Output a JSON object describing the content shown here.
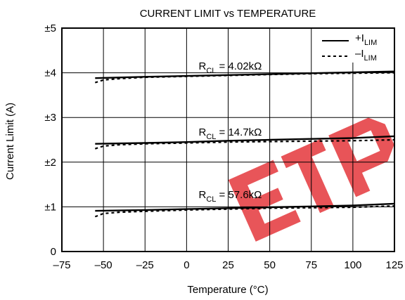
{
  "chart_data": {
    "type": "line",
    "title": "CURRENT LIMIT vs TEMPERATURE",
    "xlabel": "Temperature (°C)",
    "ylabel": "Current Limit (A)",
    "xlim": [
      -75,
      125
    ],
    "ylim": [
      0,
      5
    ],
    "x_ticks": [
      -75,
      -50,
      -25,
      0,
      25,
      50,
      75,
      100,
      125
    ],
    "x_tick_labels": [
      "–75",
      "–50",
      "–25",
      "0",
      "25",
      "50",
      "75",
      "100",
      "125"
    ],
    "y_ticks": [
      0,
      1,
      2,
      3,
      4,
      5
    ],
    "y_tick_labels": [
      "0",
      "±1",
      "±2",
      "±3",
      "±4",
      "±5"
    ],
    "grid": true,
    "legend_position": "top-right",
    "legend": [
      {
        "main": "+I",
        "sub": "LIM",
        "style": "solid"
      },
      {
        "main": "–I",
        "sub": "LIM",
        "style": "dashed"
      }
    ],
    "series": [
      {
        "name": "+I",
        "group": "4.02kΩ",
        "style": "solid",
        "x": [
          -55,
          -25,
          0,
          25,
          50,
          75,
          100,
          125
        ],
        "y": [
          3.88,
          3.91,
          3.93,
          3.95,
          3.97,
          3.99,
          4.01,
          4.03
        ]
      },
      {
        "name": "–I",
        "group": "4.02kΩ",
        "style": "dashed",
        "x": [
          -55,
          -50,
          -40,
          -25,
          0,
          25,
          50,
          75,
          100,
          125
        ],
        "y": [
          3.78,
          3.84,
          3.87,
          3.9,
          3.92,
          3.94,
          3.96,
          3.98,
          3.99,
          4.0
        ]
      },
      {
        "name": "+I",
        "group": "14.7kΩ",
        "style": "solid",
        "x": [
          -55,
          -25,
          0,
          25,
          50,
          75,
          100,
          125
        ],
        "y": [
          2.41,
          2.43,
          2.45,
          2.48,
          2.5,
          2.52,
          2.54,
          2.58
        ]
      },
      {
        "name": "–I",
        "group": "14.7kΩ",
        "style": "dashed",
        "x": [
          -55,
          -50,
          -40,
          -25,
          0,
          25,
          50,
          75,
          100,
          125
        ],
        "y": [
          2.3,
          2.36,
          2.39,
          2.41,
          2.43,
          2.45,
          2.46,
          2.47,
          2.48,
          2.5
        ]
      },
      {
        "name": "+I",
        "group": "57.6kΩ",
        "style": "solid",
        "x": [
          -55,
          -25,
          0,
          25,
          50,
          75,
          100,
          125
        ],
        "y": [
          0.91,
          0.93,
          0.95,
          0.97,
          0.99,
          1.01,
          1.03,
          1.07
        ]
      },
      {
        "name": "–I",
        "group": "57.6kΩ",
        "style": "dashed",
        "x": [
          -55,
          -50,
          -40,
          -25,
          0,
          25,
          50,
          75,
          100,
          125
        ],
        "y": [
          0.78,
          0.85,
          0.88,
          0.9,
          0.93,
          0.95,
          0.97,
          0.98,
          0.99,
          1.02
        ]
      }
    ],
    "annotations": [
      {
        "main": "R",
        "sub": "CL",
        "value": " = 4.02kΩ",
        "x": 3,
        "y": 4.15
      },
      {
        "main": "R",
        "sub": "CL",
        "value": " = 14.7kΩ",
        "x": 3,
        "y": 2.67
      },
      {
        "main": "R",
        "sub": "CL",
        "value": " = 57.6kΩ",
        "x": 3,
        "y": 1.27
      }
    ]
  },
  "watermark": {
    "color": "#e4373c",
    "opacity": 0.85
  }
}
